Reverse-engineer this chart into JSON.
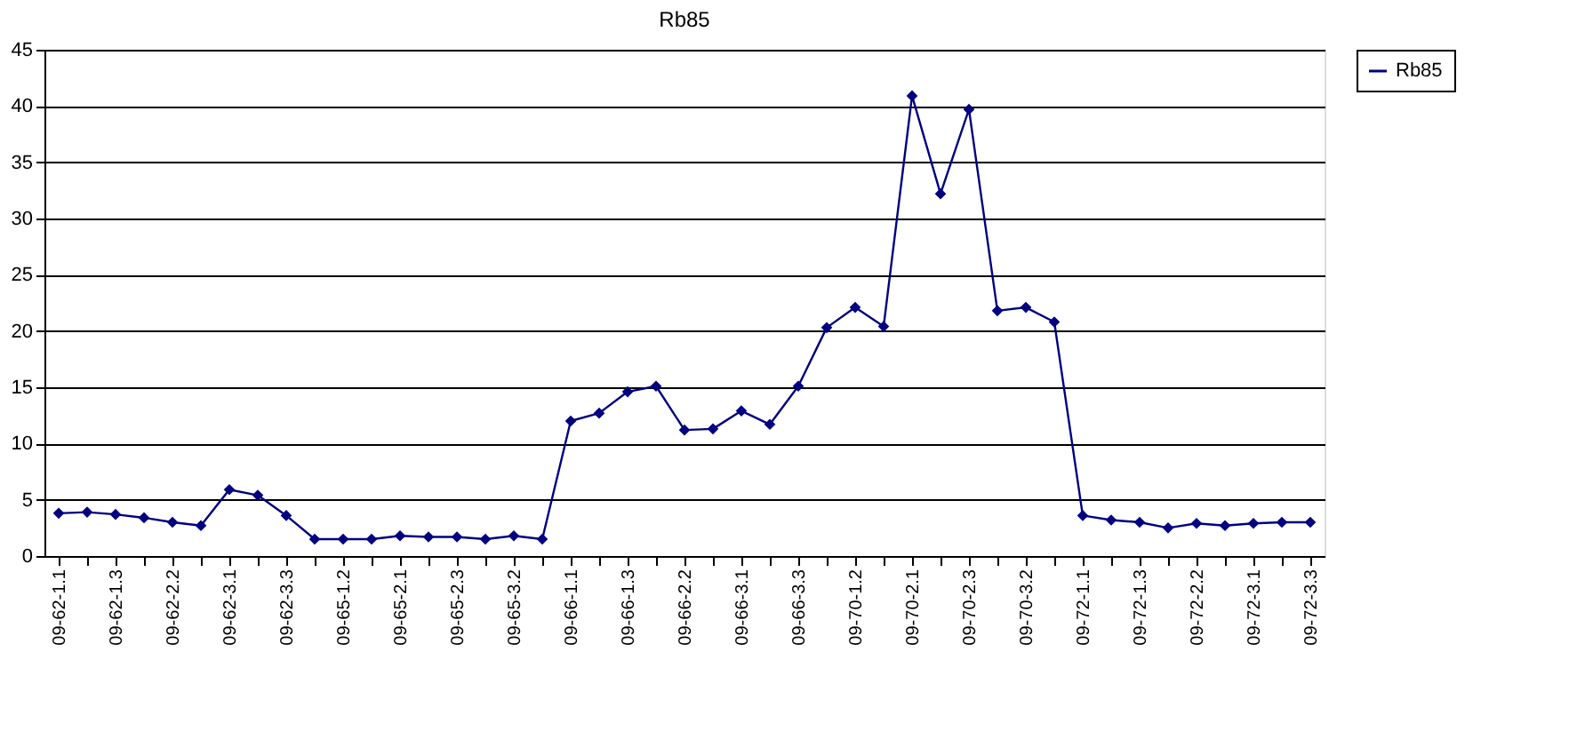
{
  "chart_data": {
    "type": "line",
    "title": "Rb85",
    "categories": [
      "09-62-1.1",
      null,
      "09-62-1.3",
      null,
      "09-62-2.2",
      null,
      "09-62-3.1",
      null,
      "09-62-3.3",
      null,
      "09-65-1.2",
      null,
      "09-65-2.1",
      null,
      "09-65-2.3",
      null,
      "09-65-3.2",
      null,
      "09-66-1.1",
      null,
      "09-66-1.3",
      null,
      "09-66-2.2",
      null,
      "09-66-3.1",
      null,
      "09-66-3.3",
      null,
      "09-70-1.2",
      null,
      "09-70-2.1",
      null,
      "09-70-2.3",
      null,
      "09-70-3.2",
      null,
      "09-72-1.1",
      null,
      "09-72-1.3",
      null,
      "09-72-2.2",
      null,
      "09-72-3.1",
      null,
      "09-72-3.3"
    ],
    "series": [
      {
        "name": "Rb85",
        "color": "#000080",
        "values": [
          3.8,
          3.9,
          3.7,
          3.4,
          3.0,
          2.7,
          5.9,
          5.4,
          3.6,
          1.5,
          1.5,
          1.5,
          1.8,
          1.7,
          1.7,
          1.5,
          1.8,
          1.5,
          12.0,
          12.7,
          14.6,
          15.1,
          11.2,
          11.3,
          12.9,
          11.7,
          15.1,
          20.3,
          22.1,
          20.4,
          40.9,
          32.2,
          39.7,
          21.8,
          22.1,
          20.8,
          3.6,
          3.2,
          3.0,
          2.5,
          2.9,
          2.7,
          2.9,
          3.0,
          3.0
        ]
      }
    ],
    "ylim": [
      0,
      45
    ],
    "yticks": [
      0,
      5,
      10,
      15,
      20,
      25,
      30,
      35,
      40,
      45
    ],
    "grid": "y",
    "legend": "right",
    "marker": "diamond",
    "line_style": "solid"
  }
}
